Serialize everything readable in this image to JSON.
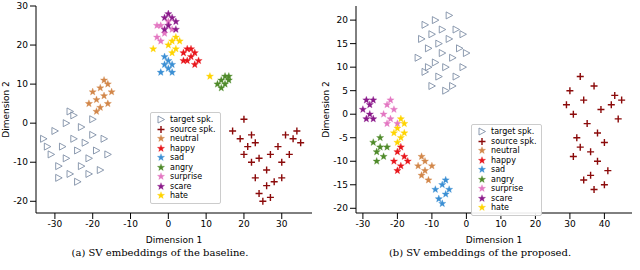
{
  "chart_data": [
    {
      "type": "scatter",
      "title": "(a) SV embeddings of the baseline.",
      "x_label": "Dimension 1",
      "y_label": "Dimension 2",
      "xlim": [
        -35,
        38
      ],
      "xticks": [
        -30,
        -20,
        -10,
        0,
        10,
        20,
        30
      ],
      "ylim": [
        -23,
        30
      ],
      "yticks": [
        -20,
        -10,
        0,
        10,
        20,
        30
      ],
      "grid": false,
      "legend": "center",
      "series": [
        {
          "name": "target spk.",
          "color": "#7f8fa6",
          "marker": "triangle",
          "values": [
            [
              -33,
              -4
            ],
            [
              -31,
              -8
            ],
            [
              -30,
              -2
            ],
            [
              -29,
              -11
            ],
            [
              -28,
              -6
            ],
            [
              -27,
              0
            ],
            [
              -27,
              -9
            ],
            [
              -26,
              -13
            ],
            [
              -25,
              -4
            ],
            [
              -25,
              2
            ],
            [
              -24,
              -7
            ],
            [
              -23,
              -11
            ],
            [
              -23,
              -1
            ],
            [
              -22,
              -5
            ],
            [
              -21,
              -9
            ],
            [
              -20,
              -3
            ],
            [
              -20,
              1
            ],
            [
              -19,
              -7
            ],
            [
              -18,
              -12
            ],
            [
              -17,
              -4
            ],
            [
              -29,
              -14
            ],
            [
              -32,
              -6
            ],
            [
              -16,
              -8
            ],
            [
              -24,
              -15
            ],
            [
              -21,
              -13
            ],
            [
              -26,
              3
            ]
          ]
        },
        {
          "name": "source spk.",
          "color": "#8b0a0a",
          "marker": "plus",
          "values": [
            [
              17,
              -2
            ],
            [
              19,
              -4
            ],
            [
              20,
              1
            ],
            [
              21,
              -6
            ],
            [
              22,
              -10
            ],
            [
              23,
              -14
            ],
            [
              24,
              -18
            ],
            [
              25,
              -20
            ],
            [
              26,
              -12
            ],
            [
              27,
              -8
            ],
            [
              22,
              -3
            ],
            [
              28,
              -15
            ],
            [
              29,
              -6
            ],
            [
              30,
              -10
            ],
            [
              31,
              -3
            ],
            [
              32,
              -8
            ],
            [
              33,
              -4
            ],
            [
              34,
              -2
            ],
            [
              24,
              -9
            ],
            [
              26,
              -16
            ],
            [
              20,
              -8
            ],
            [
              23,
              -5
            ],
            [
              27,
              -19
            ],
            [
              30,
              -14
            ],
            [
              35,
              -5
            ]
          ]
        },
        {
          "name": "neutral",
          "color": "#d2874a",
          "marker": "star",
          "values": [
            [
              -21,
              5
            ],
            [
              -20,
              8
            ],
            [
              -19,
              6
            ],
            [
              -18,
              9
            ],
            [
              -18,
              4
            ],
            [
              -17,
              7
            ],
            [
              -16,
              10
            ],
            [
              -16,
              5
            ],
            [
              -15,
              8
            ],
            [
              -19,
              3
            ],
            [
              -17,
              11
            ]
          ]
        },
        {
          "name": "happy",
          "color": "#e8161b",
          "marker": "star",
          "values": [
            [
              4,
              18
            ],
            [
              5,
              16
            ],
            [
              5,
              19
            ],
            [
              6,
              17
            ],
            [
              7,
              15
            ],
            [
              7,
              18
            ],
            [
              8,
              16
            ],
            [
              6,
              19
            ],
            [
              4,
              16
            ]
          ]
        },
        {
          "name": "sad",
          "color": "#3b8fd4",
          "marker": "star",
          "values": [
            [
              -2,
              13
            ],
            [
              -1,
              15
            ],
            [
              0,
              14
            ],
            [
              0,
              16
            ],
            [
              1,
              13
            ],
            [
              -1,
              17
            ],
            [
              1,
              15
            ]
          ]
        },
        {
          "name": "angry",
          "color": "#4f8a2a",
          "marker": "star",
          "values": [
            [
              13,
              10
            ],
            [
              14,
              11
            ],
            [
              15,
              12
            ],
            [
              15,
              10
            ],
            [
              16,
              11
            ],
            [
              14,
              9
            ],
            [
              16,
              12
            ]
          ]
        },
        {
          "name": "surprise",
          "color": "#e377c2",
          "marker": "star",
          "values": [
            [
              -3,
              22
            ],
            [
              -2,
              25
            ],
            [
              -1,
              23
            ],
            [
              0,
              26
            ],
            [
              -2,
              21
            ],
            [
              1,
              24
            ],
            [
              -3,
              25
            ]
          ]
        },
        {
          "name": "scare",
          "color": "#8b1a8b",
          "marker": "star",
          "values": [
            [
              -1,
              27
            ],
            [
              0,
              25
            ],
            [
              1,
              27
            ],
            [
              2,
              26
            ],
            [
              0,
              28
            ],
            [
              -1,
              24
            ],
            [
              2,
              24
            ]
          ]
        },
        {
          "name": "hate",
          "color": "#ffd400",
          "marker": "star",
          "values": [
            [
              0,
              20
            ],
            [
              1,
              21
            ],
            [
              2,
              19
            ],
            [
              3,
              21
            ],
            [
              1,
              18
            ],
            [
              2,
              22
            ],
            [
              -4,
              19
            ],
            [
              11,
              12
            ]
          ]
        }
      ]
    },
    {
      "type": "scatter",
      "title": "(b) SV embeddings of the proposed.",
      "x_label": "Dimension 1",
      "y_label": "Dimension 2",
      "xlim": [
        -32,
        48
      ],
      "xticks": [
        -30,
        -20,
        -10,
        0,
        10,
        20,
        30,
        40
      ],
      "ylim": [
        -21,
        23
      ],
      "yticks": [
        -20,
        -15,
        -10,
        -5,
        0,
        5,
        10,
        15,
        20
      ],
      "grid": false,
      "legend": "lower center",
      "series": [
        {
          "name": "target spk.",
          "color": "#7f8fa6",
          "marker": "triangle",
          "values": [
            [
              -14,
              12
            ],
            [
              -13,
              16
            ],
            [
              -12,
              9
            ],
            [
              -12,
              19
            ],
            [
              -11,
              14
            ],
            [
              -10,
              6
            ],
            [
              -10,
              17
            ],
            [
              -9,
              11
            ],
            [
              -9,
              20
            ],
            [
              -8,
              8
            ],
            [
              -8,
              15
            ],
            [
              -7,
              13
            ],
            [
              -7,
              18
            ],
            [
              -6,
              5
            ],
            [
              -6,
              10
            ],
            [
              -5,
              16
            ],
            [
              -5,
              21
            ],
            [
              -4,
              12
            ],
            [
              -3,
              8
            ],
            [
              -3,
              18
            ],
            [
              -2,
              14
            ],
            [
              -1,
              10
            ],
            [
              -1,
              17
            ],
            [
              0,
              13
            ],
            [
              -11,
              10
            ],
            [
              -4,
              6
            ]
          ]
        },
        {
          "name": "source spk.",
          "color": "#8b0a0a",
          "marker": "plus",
          "values": [
            [
              29,
              2
            ],
            [
              30,
              5
            ],
            [
              31,
              0
            ],
            [
              32,
              -5
            ],
            [
              33,
              8
            ],
            [
              34,
              3
            ],
            [
              35,
              -2
            ],
            [
              36,
              -8
            ],
            [
              36,
              -13
            ],
            [
              37,
              -16
            ],
            [
              38,
              -4
            ],
            [
              38,
              -10
            ],
            [
              39,
              1
            ],
            [
              40,
              -6
            ],
            [
              41,
              -12
            ],
            [
              42,
              2
            ],
            [
              43,
              4
            ],
            [
              44,
              -1
            ],
            [
              31,
              -9
            ],
            [
              34,
              -14
            ],
            [
              40,
              -15
            ],
            [
              45,
              3
            ],
            [
              33,
              -7
            ],
            [
              37,
              6
            ]
          ]
        },
        {
          "name": "neutral",
          "color": "#d2874a",
          "marker": "star",
          "values": [
            [
              -14,
              -11
            ],
            [
              -13,
              -13
            ],
            [
              -12,
              -10
            ],
            [
              -11,
              -14
            ],
            [
              -12,
              -12
            ],
            [
              -10,
              -11
            ],
            [
              -13,
              -9
            ]
          ]
        },
        {
          "name": "happy",
          "color": "#e8161b",
          "marker": "star",
          "values": [
            [
              -21,
              -10
            ],
            [
              -20,
              -8
            ],
            [
              -19,
              -11
            ],
            [
              -18,
              -9
            ],
            [
              -20,
              -12
            ],
            [
              -17,
              -10
            ],
            [
              -19,
              -7
            ]
          ]
        },
        {
          "name": "sad",
          "color": "#3b8fd4",
          "marker": "star",
          "values": [
            [
              -9,
              -16
            ],
            [
              -8,
              -18
            ],
            [
              -7,
              -15
            ],
            [
              -6,
              -17
            ],
            [
              -5,
              -16
            ],
            [
              -7,
              -19
            ],
            [
              -6,
              -14
            ]
          ]
        },
        {
          "name": "angry",
          "color": "#4f8a2a",
          "marker": "star",
          "values": [
            [
              -27,
              -6
            ],
            [
              -26,
              -8
            ],
            [
              -25,
              -7
            ],
            [
              -24,
              -9
            ],
            [
              -25,
              -5
            ],
            [
              -26,
              -10
            ],
            [
              -23,
              -7
            ]
          ]
        },
        {
          "name": "surprise",
          "color": "#e377c2",
          "marker": "star",
          "values": [
            [
              -24,
              0
            ],
            [
              -23,
              2
            ],
            [
              -22,
              -1
            ],
            [
              -21,
              1
            ],
            [
              -22,
              3
            ],
            [
              -20,
              -2
            ],
            [
              -23,
              -2
            ]
          ]
        },
        {
          "name": "scare",
          "color": "#8b1a8b",
          "marker": "star",
          "values": [
            [
              -30,
              1
            ],
            [
              -29,
              3
            ],
            [
              -28,
              0
            ],
            [
              -28,
              2
            ],
            [
              -27,
              -1
            ],
            [
              -29,
              -1
            ],
            [
              -27,
              3
            ]
          ]
        },
        {
          "name": "hate",
          "color": "#ffd400",
          "marker": "star",
          "values": [
            [
              -21,
              -4
            ],
            [
              -20,
              -3
            ],
            [
              -19,
              -5
            ],
            [
              -18,
              -2
            ],
            [
              -19,
              -1
            ],
            [
              -20,
              -6
            ],
            [
              -18,
              -4
            ]
          ]
        }
      ]
    }
  ]
}
